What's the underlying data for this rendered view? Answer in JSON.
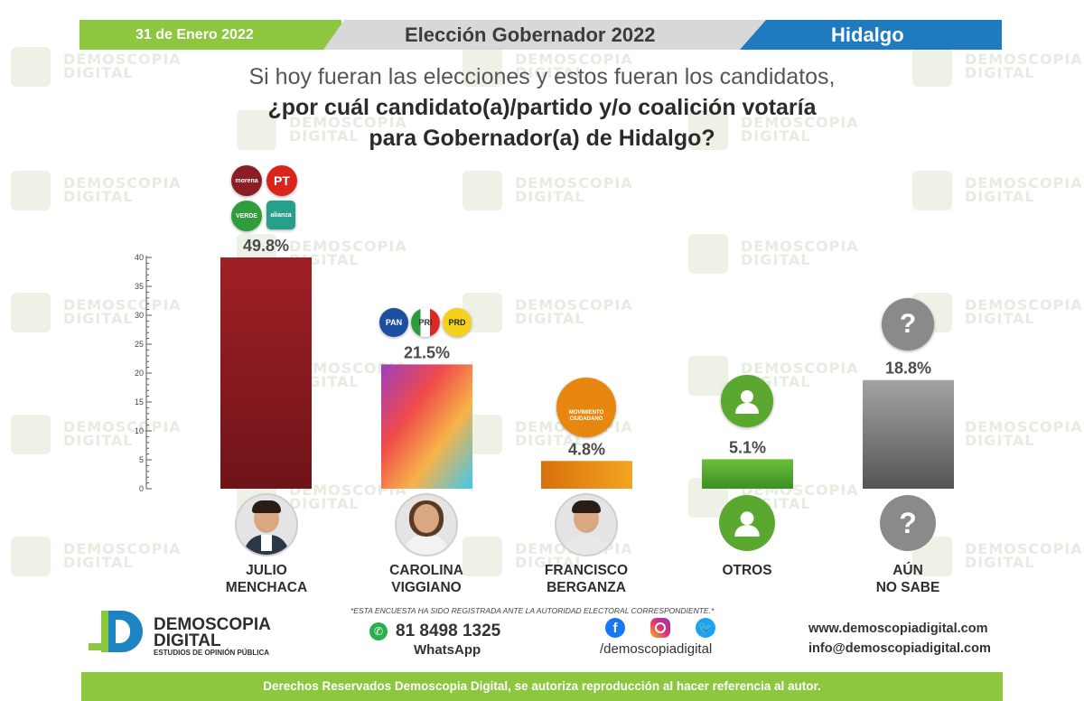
{
  "header": {
    "date": "31 de Enero 2022",
    "title": "Elección Gobernador 2022",
    "state": "Hidalgo"
  },
  "question": {
    "line1": "Si hoy fueran las elecciones y estos fueran los candidatos,",
    "line2": "¿por cuál candidato(a)/partido y/o coalición votaría",
    "line3": "para Gobernador(a) de Hidalgo?"
  },
  "watermark": {
    "line1": "DEMOSCOPIA",
    "line2": "DIGITAL"
  },
  "parties": {
    "morena": "morena",
    "pt": "PT",
    "verde": "VERDE",
    "alianza": "alianza",
    "pan": "PAN",
    "pri": "PRI",
    "prd": "PRD",
    "mc": "MOVIMIENTO CIUDADANO"
  },
  "chart_data": {
    "type": "bar",
    "categories": [
      "JULIO MENCHACA",
      "CAROLINA VIGGIANO",
      "FRANCISCO BERGANZA",
      "OTROS",
      "AÚN NO SABE"
    ],
    "values": [
      49.8,
      21.5,
      4.8,
      5.1,
      18.8
    ],
    "value_labels": [
      "49.8%",
      "21.5%",
      "4.8%",
      "5.1%",
      "18.8%"
    ],
    "yticks": [
      0,
      5,
      10,
      15,
      20,
      25,
      30,
      35,
      40
    ],
    "ylim": [
      0,
      40
    ],
    "colors": [
      "#8b1c22",
      "#ee5a49",
      "#e88a10",
      "#5aa82f",
      "#7a7a7a"
    ],
    "grid": false
  },
  "candidates": [
    {
      "name_line1": "JULIO",
      "name_line2": "MENCHACA"
    },
    {
      "name_line1": "CAROLINA",
      "name_line2": "VIGGIANO"
    },
    {
      "name_line1": "FRANCISCO",
      "name_line2": "BERGANZA"
    },
    {
      "name_line1": "OTROS",
      "name_line2": ""
    },
    {
      "name_line1": "AÚN",
      "name_line2": "NO SABE"
    }
  ],
  "footer": {
    "notice": "*ESTA ENCUESTA HA SIDO REGISTRADA ANTE LA AUTORIDAD ELECTORAL CORRESPONDIENTE.*",
    "brand_line1": "DEMOSCOPIA",
    "brand_line2": "DIGITAL",
    "brand_tagline": "ESTUDIOS DE OPINIÓN PÚBLICA",
    "phone": "81 8498 1325",
    "whatsapp": "WhatsApp",
    "social_handle": "/demoscopiadigital",
    "website": "www.demoscopiadigital.com",
    "email": "info@demoscopiadigital.com",
    "rights": "Derechos Reservados Demoscopia Digital, se autoriza reproducción al hacer referencia al autor."
  }
}
